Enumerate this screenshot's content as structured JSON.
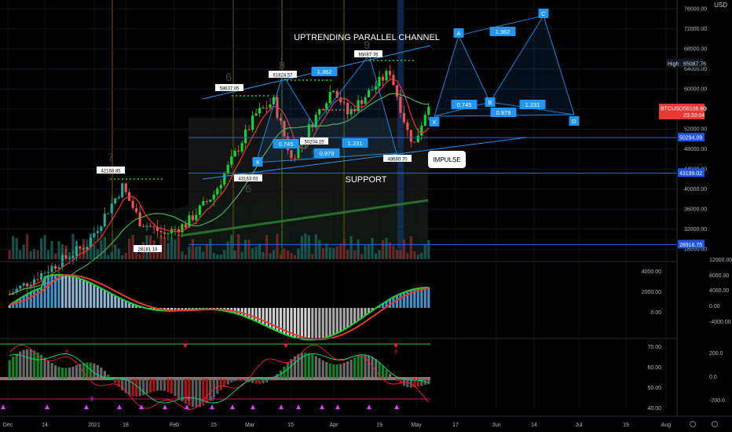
{
  "chart_data": {
    "type": "candlestick",
    "symbol": "BTCUSD",
    "currency": "USD",
    "x_labels": [
      "Dec",
      "14",
      "2021",
      "18",
      "Feb",
      "15",
      "Mar",
      "15",
      "Apr",
      "19",
      "May",
      "17",
      "Jun",
      "14",
      "Jul",
      "19",
      "Aug"
    ],
    "price_axis_ticks": [
      "76000.00",
      "72000.00",
      "68000.00",
      "64000.00",
      "60000.00",
      "56000.00",
      "52000.00",
      "48000.00",
      "44000.00",
      "40000.00",
      "36000.00",
      "32000.00",
      "28000.00"
    ],
    "price_axis": {
      "min": 26000,
      "max": 76500
    },
    "price_tags": {
      "high": {
        "label": "High",
        "value": "65087.76"
      },
      "last": {
        "label": "BTCUSD",
        "value": "56108.60",
        "countdown": "23:33:04"
      },
      "lines": [
        "50294.09",
        "43199.02",
        "28916.75"
      ]
    },
    "annotations": {
      "channel_title": "UPTRENDING PARALLEL CHANNEL",
      "support": "SUPPORT",
      "impulse": "IMPULSE",
      "pivot_highs": [
        "42168.85",
        "58637.05",
        "61824.57",
        "65087.76"
      ],
      "pivot_lows": [
        "28181.19",
        "43163.03",
        "50204.15",
        "48680.70"
      ],
      "counts": [
        "6",
        "7",
        "8",
        "9",
        "6",
        "5"
      ],
      "pattern_points": [
        "X",
        "A",
        "B",
        "C",
        "D"
      ],
      "ratios": [
        "1.362",
        "0.745",
        "0.979",
        "1.231"
      ]
    },
    "macd_axis_ticks_left": [
      "4000.00",
      "2000.00",
      "0.00"
    ],
    "macd_axis_ticks_right": [
      "12000.00",
      "8000.00",
      "4000.00",
      "0.00",
      "-4000.00"
    ],
    "rsi_axis_ticks_left": [
      "70.00",
      "60.00",
      "50.00",
      "40.00"
    ],
    "rsi_axis_ticks_right": [
      "200.0",
      "0.0",
      "-200.0"
    ],
    "bottom_marker": "9"
  },
  "colors": {
    "bull": "#26a69a",
    "bull_bright": "#1bd12e",
    "bear": "#ef5350",
    "fib": "#2196f3",
    "label_bg": "#2196f3",
    "support_line": "#2962ff",
    "ma_red": "#e53935",
    "ma_green": "#4caf50"
  }
}
